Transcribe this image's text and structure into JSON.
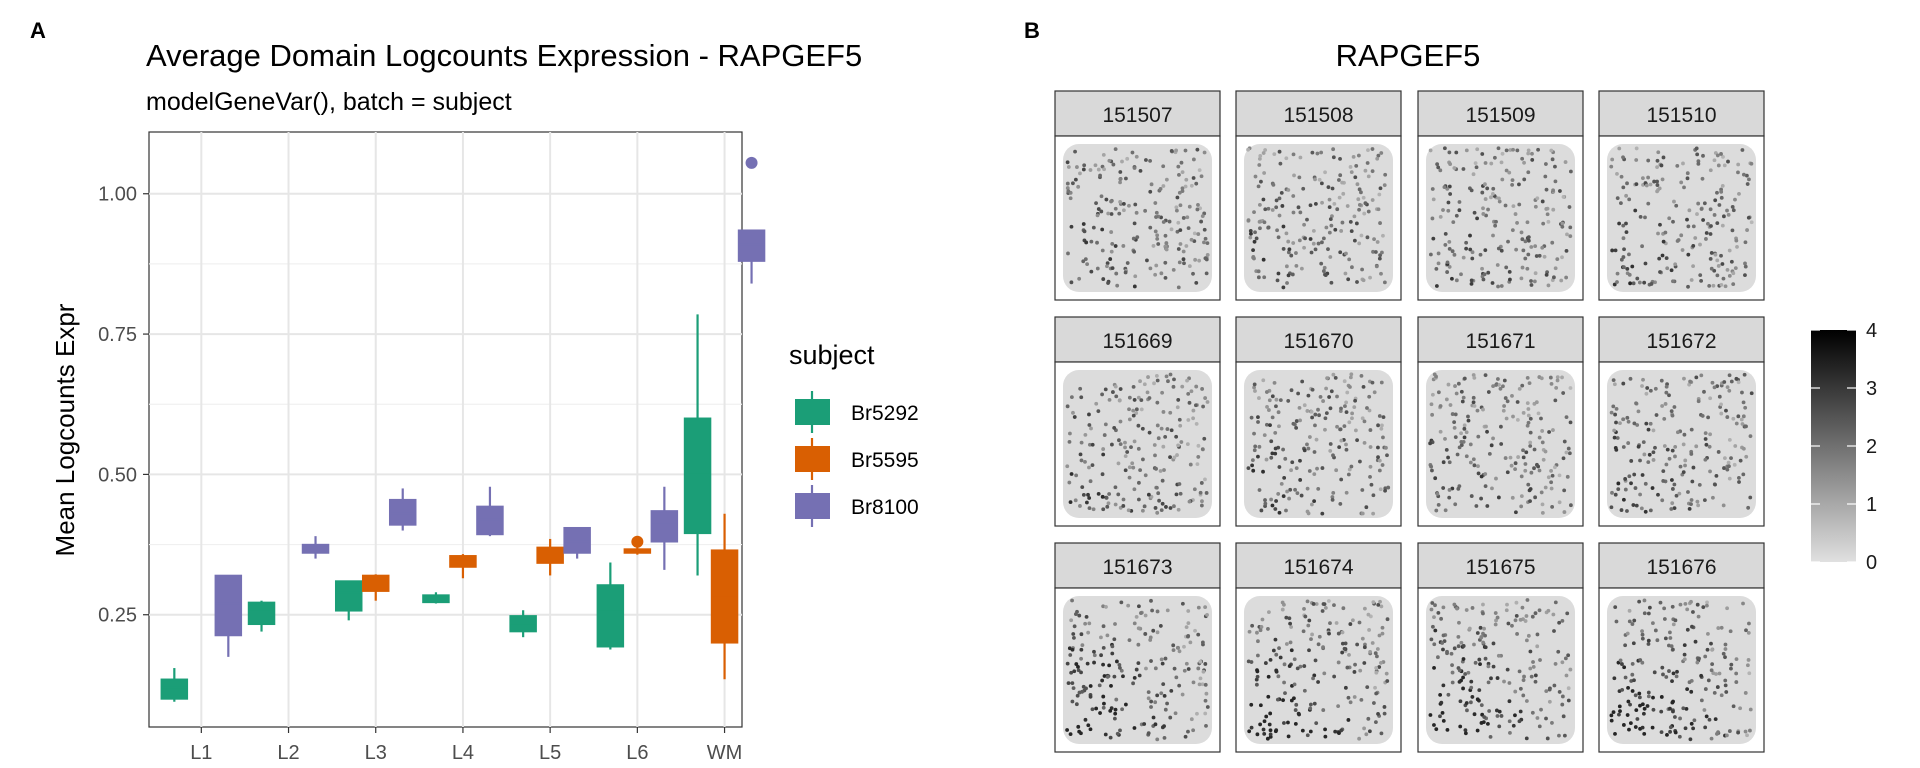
{
  "panel_a": {
    "label": "A",
    "title": "Average Domain Logcounts Expression - RAPGEF5",
    "subtitle": "modelGeneVar(), batch = subject",
    "legend": {
      "title": "subject"
    }
  },
  "panel_b": {
    "label": "B",
    "title": "RAPGEF5",
    "colorbar": {
      "ticks": [
        "0",
        "1",
        "2",
        "3",
        "4"
      ],
      "range": [
        0,
        4
      ],
      "low_color": "#e0e0e0",
      "high_color": "#000000"
    }
  },
  "chart_data": [
    {
      "type": "box",
      "title": "Average Domain Logcounts Expression - RAPGEF5",
      "subtitle": "modelGeneVar(), batch = subject",
      "xlabel": "",
      "ylabel": "Mean Logcounts Expr",
      "categories": [
        "L1",
        "L2",
        "L3",
        "L4",
        "L5",
        "L6",
        "WM"
      ],
      "y_ticks": [
        0.25,
        0.5,
        0.75,
        1.0
      ],
      "y_tick_labels": [
        "0.25",
        "0.50",
        "0.75",
        "1.00"
      ],
      "ylim": [
        0.05,
        1.11
      ],
      "grid": true,
      "legend_title": "subject",
      "legend_position": "right",
      "series": [
        {
          "name": "Br5292",
          "color": "#1b9e77",
          "boxes": [
            {
              "category": "L1",
              "min": 0.095,
              "q1": 0.1,
              "median": 0.12,
              "q3": 0.135,
              "max": 0.155,
              "outliers": []
            },
            {
              "category": "L2",
              "min": 0.22,
              "q1": 0.233,
              "median": 0.26,
              "q3": 0.272,
              "max": 0.275,
              "outliers": []
            },
            {
              "category": "L3",
              "min": 0.24,
              "q1": 0.257,
              "median": 0.29,
              "q3": 0.31,
              "max": 0.31,
              "outliers": []
            },
            {
              "category": "L4",
              "min": 0.27,
              "q1": 0.272,
              "median": 0.28,
              "q3": 0.285,
              "max": 0.29,
              "outliers": []
            },
            {
              "category": "L5",
              "min": 0.21,
              "q1": 0.22,
              "median": 0.235,
              "q3": 0.248,
              "max": 0.258,
              "outliers": []
            },
            {
              "category": "L6",
              "min": 0.188,
              "q1": 0.193,
              "median": 0.26,
              "q3": 0.303,
              "max": 0.343,
              "outliers": []
            },
            {
              "category": "WM",
              "min": 0.32,
              "q1": 0.395,
              "median": 0.5,
              "q3": 0.6,
              "max": 0.785,
              "outliers": []
            }
          ]
        },
        {
          "name": "Br5595",
          "color": "#d95f02",
          "boxes": [
            {
              "category": "L3",
              "min": 0.275,
              "q1": 0.292,
              "median": 0.31,
              "q3": 0.32,
              "max": 0.322,
              "outliers": []
            },
            {
              "category": "L4",
              "min": 0.315,
              "q1": 0.335,
              "median": 0.345,
              "q3": 0.355,
              "max": 0.358,
              "outliers": []
            },
            {
              "category": "L5",
              "min": 0.32,
              "q1": 0.342,
              "median": 0.36,
              "q3": 0.37,
              "max": 0.385,
              "outliers": []
            },
            {
              "category": "L6",
              "min": 0.357,
              "q1": 0.36,
              "median": 0.363,
              "q3": 0.367,
              "max": 0.37,
              "outliers": [
                0.38
              ]
            },
            {
              "category": "WM",
              "min": 0.135,
              "q1": 0.2,
              "median": 0.28,
              "q3": 0.365,
              "max": 0.43,
              "outliers": []
            }
          ]
        },
        {
          "name": "Br8100",
          "color": "#7570b3",
          "boxes": [
            {
              "category": "L1",
              "min": 0.175,
              "q1": 0.213,
              "median": 0.27,
              "q3": 0.32,
              "max": 0.32,
              "outliers": []
            },
            {
              "category": "L2",
              "min": 0.35,
              "q1": 0.36,
              "median": 0.37,
              "q3": 0.375,
              "max": 0.39,
              "outliers": []
            },
            {
              "category": "L3",
              "min": 0.4,
              "q1": 0.41,
              "median": 0.43,
              "q3": 0.455,
              "max": 0.475,
              "outliers": []
            },
            {
              "category": "L4",
              "min": 0.39,
              "q1": 0.393,
              "median": 0.42,
              "q3": 0.443,
              "max": 0.478,
              "outliers": []
            },
            {
              "category": "L5",
              "min": 0.35,
              "q1": 0.36,
              "median": 0.38,
              "q3": 0.405,
              "max": 0.405,
              "outliers": []
            },
            {
              "category": "L6",
              "min": 0.33,
              "q1": 0.38,
              "median": 0.41,
              "q3": 0.435,
              "max": 0.478,
              "outliers": []
            },
            {
              "category": "WM",
              "min": 0.84,
              "q1": 0.88,
              "median": 0.91,
              "q3": 0.935,
              "max": 0.935,
              "outliers": [
                1.055
              ]
            }
          ]
        }
      ]
    },
    {
      "type": "heatmap",
      "title": "RAPGEF5",
      "legend_position": "right",
      "color_range": [
        0,
        4
      ],
      "color_ticks": [
        "0",
        "1",
        "2",
        "3",
        "4"
      ],
      "facets": [
        "151507",
        "151508",
        "151509",
        "151510",
        "151669",
        "151670",
        "151671",
        "151672",
        "151673",
        "151674",
        "151675",
        "151676"
      ]
    }
  ]
}
